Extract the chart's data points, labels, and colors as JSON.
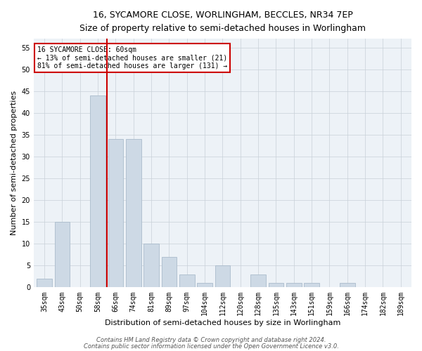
{
  "title": "16, SYCAMORE CLOSE, WORLINGHAM, BECCLES, NR34 7EP",
  "subtitle": "Size of property relative to semi-detached houses in Worlingham",
  "xlabel": "Distribution of semi-detached houses by size in Worlingham",
  "ylabel": "Number of semi-detached properties",
  "categories": [
    "35sqm",
    "43sqm",
    "50sqm",
    "58sqm",
    "66sqm",
    "74sqm",
    "81sqm",
    "89sqm",
    "97sqm",
    "104sqm",
    "112sqm",
    "120sqm",
    "128sqm",
    "135sqm",
    "143sqm",
    "151sqm",
    "159sqm",
    "166sqm",
    "174sqm",
    "182sqm",
    "189sqm"
  ],
  "values": [
    2,
    15,
    0,
    44,
    34,
    34,
    10,
    7,
    3,
    1,
    5,
    0,
    3,
    1,
    1,
    1,
    0,
    1,
    0,
    0,
    0
  ],
  "bar_color": "#cdd9e5",
  "bar_edge_color": "#aabccc",
  "vline_x": 3.5,
  "vline_color": "#cc0000",
  "annotation_title": "16 SYCAMORE CLOSE: 60sqm",
  "annotation_line1": "← 13% of semi-detached houses are smaller (21)",
  "annotation_line2": "81% of semi-detached houses are larger (131) →",
  "annotation_box_color": "#cc0000",
  "ylim": [
    0,
    57
  ],
  "yticks": [
    0,
    5,
    10,
    15,
    20,
    25,
    30,
    35,
    40,
    45,
    50,
    55
  ],
  "footer1": "Contains HM Land Registry data © Crown copyright and database right 2024.",
  "footer2": "Contains public sector information licensed under the Open Government Licence v3.0.",
  "bg_color": "#edf2f7",
  "grid_color": "#c8d0d8",
  "title_fontsize": 9,
  "subtitle_fontsize": 8,
  "tick_fontsize": 7,
  "ylabel_fontsize": 8,
  "xlabel_fontsize": 8,
  "annotation_fontsize": 7,
  "footer_fontsize": 6
}
